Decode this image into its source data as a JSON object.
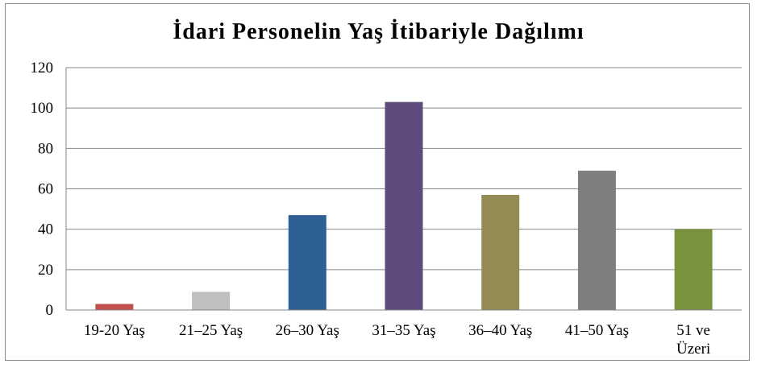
{
  "chart_data": {
    "type": "bar",
    "title": "İdari Personelin Yaş İtibariyle Dağılımı",
    "categories": [
      [
        "19-20 Yaş"
      ],
      [
        "21–25 Yaş"
      ],
      [
        "26–30 Yaş"
      ],
      [
        "31–35 Yaş"
      ],
      [
        "36–40 Yaş"
      ],
      [
        "41–50 Yaş"
      ],
      [
        "51 ve",
        "Üzeri"
      ]
    ],
    "values": [
      3,
      9,
      47,
      103,
      57,
      69,
      40
    ],
    "colors": [
      "#c0504d",
      "#bfbfbf",
      "#2e5f95",
      "#5e4a7c",
      "#948a54",
      "#7f7f7f",
      "#77933c"
    ],
    "ylim": [
      0,
      120
    ],
    "yticks": [
      0,
      20,
      40,
      60,
      80,
      100,
      120
    ],
    "grid": true,
    "legend": "none",
    "xlabel": "",
    "ylabel": ""
  }
}
